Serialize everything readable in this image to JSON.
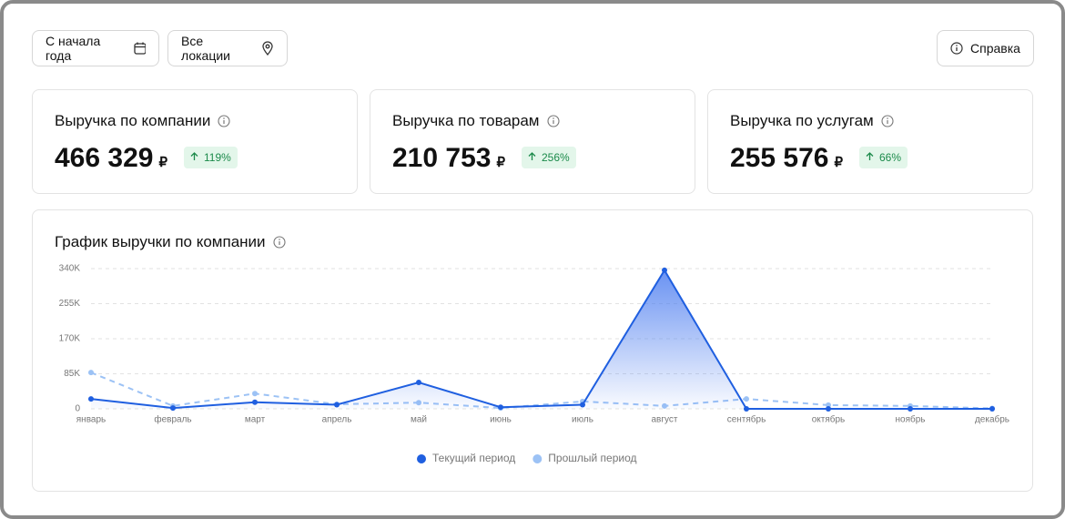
{
  "filters": [
    "С начала года",
    "Все локации"
  ],
  "help_button": "Справка",
  "cards": [
    {
      "title": "Выручка по компании",
      "value": "466 329",
      "currency": "₽",
      "change": "119%"
    },
    {
      "title": "Выручка по товарам",
      "value": "210 753",
      "currency": "₽",
      "change": "256%"
    },
    {
      "title": "Выручка по услугам",
      "value": "255 576",
      "currency": "₽",
      "change": "66%"
    }
  ],
  "chart_data": {
    "type": "line",
    "title": "График выручки по компании",
    "categories": [
      "январь",
      "февраль",
      "март",
      "апрель",
      "май",
      "июнь",
      "июль",
      "август",
      "сентябрь",
      "октябрь",
      "ноябрь",
      "декабрь"
    ],
    "series": [
      {
        "name": "Текущий период",
        "color": "#1f5fe0",
        "values": [
          24000,
          2000,
          16000,
          10000,
          64000,
          4000,
          10000,
          336000,
          0,
          0,
          0,
          0
        ]
      },
      {
        "name": "Прошлый период",
        "color": "#9cc2f5",
        "values": [
          88000,
          7000,
          37000,
          11000,
          15000,
          2000,
          18000,
          7000,
          24000,
          9000,
          7000,
          1000
        ]
      }
    ],
    "ylim": [
      0,
      340000
    ],
    "yticks": [
      0,
      {
        "value": 85000,
        "label": "85K"
      },
      {
        "value": 170000,
        "label": "170K"
      },
      {
        "value": 255000,
        "label": "255K"
      },
      {
        "value": 340000,
        "label": "340K"
      }
    ],
    "grid": true
  }
}
